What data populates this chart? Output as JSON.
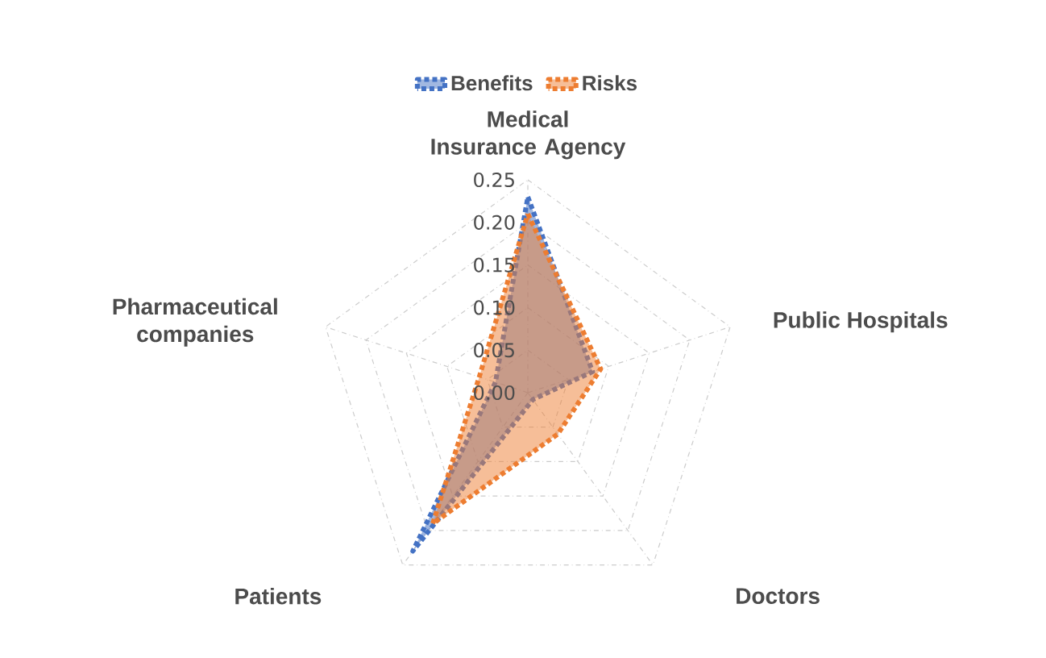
{
  "chart_data": {
    "type": "radar",
    "categories": [
      "Medical Insurance Agency",
      "Public Hospitals",
      "Doctors",
      "Patients",
      "Pharmaceutical companies"
    ],
    "series": [
      {
        "name": "Benefits",
        "color": "#4472c4",
        "values": [
          0.23,
          0.08,
          0.01,
          0.23,
          0.04
        ]
      },
      {
        "name": "Risks",
        "color": "#ed7d31",
        "values": [
          0.21,
          0.09,
          0.06,
          0.19,
          0.06
        ]
      }
    ],
    "ylim": [
      0,
      0.25
    ],
    "yticks": [
      {
        "value": 0,
        "label": "0.00"
      },
      0.05,
      {
        "value": 0.1,
        "label": "0.10"
      },
      0.15,
      {
        "value": 0.2,
        "label": "0.20"
      },
      0.25
    ],
    "grid": true,
    "legend": "top",
    "line_style": "dotted"
  }
}
